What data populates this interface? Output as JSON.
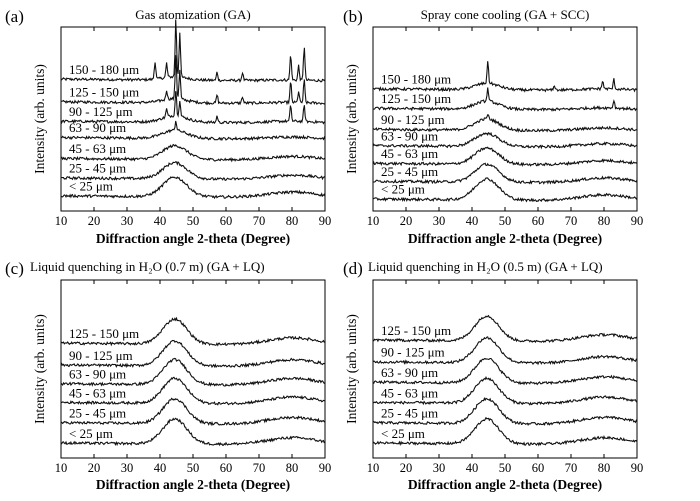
{
  "figure": {
    "panels": [
      {
        "tag": "(a)",
        "title": "Gas atomization (GA)"
      },
      {
        "tag": "(b)",
        "title": "Spray cone cooling (GA + SCC)"
      },
      {
        "tag": "(c)",
        "title": "Liquid quenching in H₂O (0.7 m) (GA + LQ)"
      },
      {
        "tag": "(d)",
        "title": "Liquid quenching in H₂O (0.5 m) (GA + LQ)"
      }
    ]
  },
  "chart_data": [
    {
      "type": "line",
      "title": "Gas atomization (GA)",
      "xlabel": "Diffraction angle 2-theta (Degree)",
      "ylabel": "Intensity (arb. units)",
      "xlim": [
        10,
        90
      ],
      "xticks": [
        10,
        20,
        30,
        40,
        50,
        60,
        70,
        80,
        90
      ],
      "series": [
        {
          "name": "150 - 180  μm",
          "baseline": 0.74,
          "amorphous_amp": 0.02,
          "sharp_peaks": [
            [
              38.5,
              0.11
            ],
            [
              42,
              0.09
            ],
            [
              44.8,
              0.36
            ],
            [
              46,
              0.28
            ],
            [
              57.3,
              0.05
            ],
            [
              65,
              0.05
            ],
            [
              79.6,
              0.16
            ],
            [
              82,
              0.09
            ],
            [
              83.7,
              0.21
            ]
          ]
        },
        {
          "name": "125 - 150  μm",
          "baseline": 0.6,
          "amorphous_amp": 0.025,
          "sharp_peaks": [
            [
              42,
              0.06
            ],
            [
              44.8,
              0.28
            ],
            [
              46,
              0.18
            ],
            [
              57.3,
              0.05
            ],
            [
              65,
              0.04
            ],
            [
              79.6,
              0.13
            ],
            [
              82,
              0.07
            ],
            [
              83.7,
              0.14
            ]
          ]
        },
        {
          "name": "90 - 125  μm",
          "baseline": 0.48,
          "amorphous_amp": 0.04,
          "sharp_peaks": [
            [
              42,
              0.05
            ],
            [
              44.8,
              0.16
            ],
            [
              46,
              0.1
            ],
            [
              57.3,
              0.04
            ],
            [
              79.6,
              0.1
            ],
            [
              83.7,
              0.1
            ]
          ]
        },
        {
          "name": "63 - 90  μm",
          "baseline": 0.38,
          "amorphous_amp": 0.05,
          "sharp_peaks": [
            [
              44.8,
              0.06
            ]
          ]
        },
        {
          "name": "45 - 63  μm",
          "baseline": 0.25,
          "amorphous_amp": 0.085,
          "sharp_peaks": []
        },
        {
          "name": "25 - 45  μm",
          "baseline": 0.13,
          "amorphous_amp": 0.1,
          "sharp_peaks": []
        },
        {
          "name": "< 25  μm",
          "baseline": 0.02,
          "amorphous_amp": 0.12,
          "sharp_peaks": []
        }
      ]
    },
    {
      "type": "line",
      "title": "Spray cone cooling (GA + SCC)",
      "xlabel": "Diffraction angle 2-theta (Degree)",
      "ylabel": "Intensity (arb. units)",
      "xlim": [
        10,
        90
      ],
      "xticks": [
        10,
        20,
        30,
        40,
        50,
        60,
        70,
        80,
        90
      ],
      "series": [
        {
          "name": "150 - 180  μm",
          "baseline": 0.68,
          "amorphous_amp": 0.04,
          "sharp_peaks": [
            [
              44.8,
              0.14
            ],
            [
              65,
              0.03
            ],
            [
              79.6,
              0.05
            ],
            [
              83,
              0.06
            ]
          ]
        },
        {
          "name": "125 - 150  μm",
          "baseline": 0.56,
          "amorphous_amp": 0.05,
          "sharp_peaks": [
            [
              44.8,
              0.08
            ],
            [
              83,
              0.05
            ]
          ]
        },
        {
          "name": "90 - 125  μm",
          "baseline": 0.43,
          "amorphous_amp": 0.07,
          "sharp_peaks": [
            [
              44.8,
              0.03
            ]
          ]
        },
        {
          "name": "63 - 90  μm",
          "baseline": 0.33,
          "amorphous_amp": 0.08,
          "sharp_peaks": []
        },
        {
          "name": "45 - 63  μm",
          "baseline": 0.22,
          "amorphous_amp": 0.1,
          "sharp_peaks": []
        },
        {
          "name": "25 - 45  μm",
          "baseline": 0.11,
          "amorphous_amp": 0.11,
          "sharp_peaks": []
        },
        {
          "name": "< 25  μm",
          "baseline": 0.0,
          "amorphous_amp": 0.13,
          "sharp_peaks": []
        }
      ]
    },
    {
      "type": "line",
      "title": "Liquid quenching in H₂O (0.7 m) (GA + LQ)",
      "xlabel": "Diffraction angle 2-theta (Degree)",
      "ylabel": "Intensity (arb. units)",
      "xlim": [
        10,
        90
      ],
      "xticks": [
        10,
        20,
        30,
        40,
        50,
        60,
        70,
        80,
        90
      ],
      "series": [
        {
          "name": "125 - 150  μm",
          "baseline": 0.66,
          "amorphous_amp": 0.16,
          "sharp_peaks": []
        },
        {
          "name": "90 - 125  μm",
          "baseline": 0.52,
          "amorphous_amp": 0.16,
          "sharp_peaks": []
        },
        {
          "name": "63 - 90  μm",
          "baseline": 0.4,
          "amorphous_amp": 0.16,
          "sharp_peaks": []
        },
        {
          "name": "45 - 63  μm",
          "baseline": 0.28,
          "amorphous_amp": 0.16,
          "sharp_peaks": []
        },
        {
          "name": "25 - 45  μm",
          "baseline": 0.15,
          "amorphous_amp": 0.16,
          "sharp_peaks": []
        },
        {
          "name": "< 25  μm",
          "baseline": 0.02,
          "amorphous_amp": 0.16,
          "sharp_peaks": []
        }
      ]
    },
    {
      "type": "line",
      "title": "Liquid quenching in H₂O (0.5 m) (GA + LQ)",
      "xlabel": "Diffraction angle 2-theta (Degree)",
      "ylabel": "Intensity (arb. units)",
      "xlim": [
        10,
        90
      ],
      "xticks": [
        10,
        20,
        30,
        40,
        50,
        60,
        70,
        80,
        90
      ],
      "series": [
        {
          "name": "125 - 150  μm",
          "baseline": 0.68,
          "amorphous_amp": 0.16,
          "sharp_peaks": []
        },
        {
          "name": "90 - 125  μm",
          "baseline": 0.54,
          "amorphous_amp": 0.16,
          "sharp_peaks": []
        },
        {
          "name": "63 - 90  μm",
          "baseline": 0.41,
          "amorphous_amp": 0.16,
          "sharp_peaks": []
        },
        {
          "name": "45 - 63  μm",
          "baseline": 0.28,
          "amorphous_amp": 0.16,
          "sharp_peaks": []
        },
        {
          "name": "25 - 45  μm",
          "baseline": 0.15,
          "amorphous_amp": 0.16,
          "sharp_peaks": []
        },
        {
          "name": "< 25  μm",
          "baseline": 0.02,
          "amorphous_amp": 0.16,
          "sharp_peaks": []
        }
      ]
    }
  ]
}
